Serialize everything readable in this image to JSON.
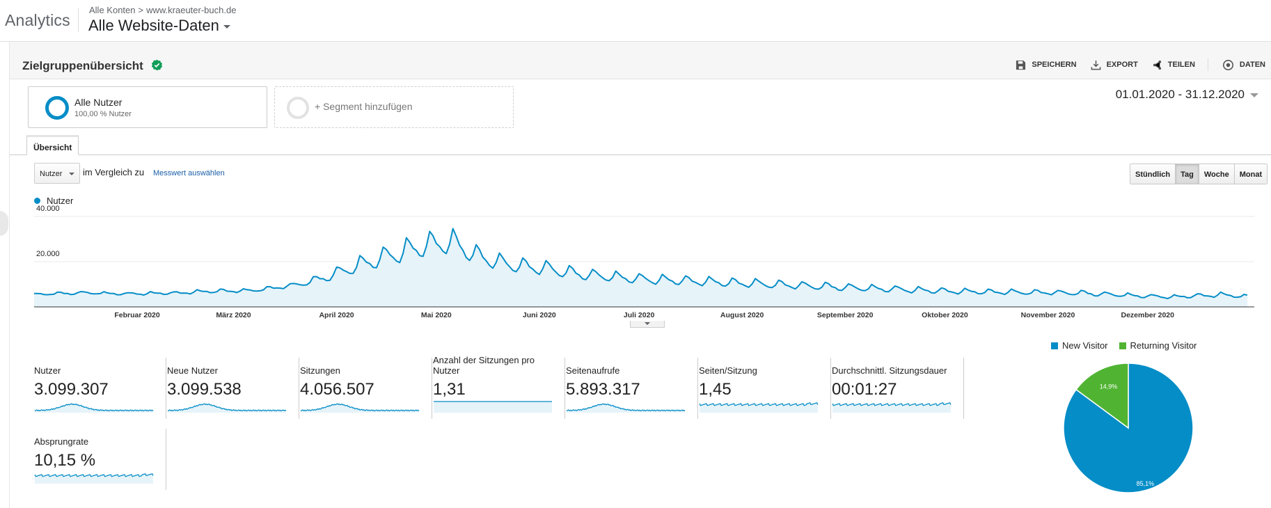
{
  "app": {
    "brand": "Analytics"
  },
  "header": {
    "breadcrumb_account": "Alle Konten",
    "breadcrumb_separator": ">",
    "breadcrumb_property": "www.kraeuter-buch.de",
    "view_name": "Alle Website-Daten"
  },
  "page": {
    "title": "Zielgruppenübersicht",
    "actions": {
      "save": "SPEICHERN",
      "export": "EXPORT",
      "share": "TEILEN",
      "insights": "DATEN"
    }
  },
  "segments": {
    "active_name": "Alle Nutzer",
    "active_sub": "100,00 % Nutzer",
    "add_label": "+ Segment hinzufügen"
  },
  "date_range": "01.01.2020 - 31.12.2020",
  "tabs": {
    "overview": "Übersicht"
  },
  "controls": {
    "metric": "Nutzer",
    "compare_label": "im Vergleich zu",
    "compare_link": "Messwert auswählen",
    "granularity": [
      "Stündlich",
      "Tag",
      "Woche",
      "Monat"
    ],
    "granularity_selected": "Tag"
  },
  "colors": {
    "accent": "#058dc7",
    "area_fill": "#e6f3f9",
    "returning": "#50b432",
    "verified": "#0f9d58"
  },
  "chart_data": [
    {
      "type": "area",
      "legend": [
        "Nutzer"
      ],
      "x_range": [
        "2020-01-01",
        "2020-12-31"
      ],
      "x_tick_labels": [
        "Februar 2020",
        "März 2020",
        "April 2020",
        "Mai 2020",
        "Juni 2020",
        "Juli 2020",
        "August 2020",
        "September 2020",
        "Oktober 2020",
        "November 2020",
        "Dezember 2020"
      ],
      "y_tick_labels": [
        "40.000",
        "20.000"
      ],
      "ylim": [
        0,
        40000
      ],
      "granularity": "day",
      "series": [
        {
          "name": "Nutzer",
          "weekly_x": [
            "2020-01-01",
            "2020-01-08",
            "2020-01-15",
            "2020-01-22",
            "2020-01-29",
            "2020-02-05",
            "2020-02-12",
            "2020-02-19",
            "2020-02-26",
            "2020-03-04",
            "2020-03-11",
            "2020-03-18",
            "2020-03-25",
            "2020-04-01",
            "2020-04-08",
            "2020-04-15",
            "2020-04-22",
            "2020-04-29",
            "2020-05-06",
            "2020-05-13",
            "2020-05-20",
            "2020-05-27",
            "2020-06-03",
            "2020-06-10",
            "2020-06-17",
            "2020-06-24",
            "2020-07-01",
            "2020-07-08",
            "2020-07-15",
            "2020-07-22",
            "2020-07-29",
            "2020-08-05",
            "2020-08-12",
            "2020-08-19",
            "2020-08-26",
            "2020-09-02",
            "2020-09-09",
            "2020-09-16",
            "2020-09-23",
            "2020-09-30",
            "2020-10-07",
            "2020-10-14",
            "2020-10-21",
            "2020-10-28",
            "2020-11-04",
            "2020-11-11",
            "2020-11-18",
            "2020-11-25",
            "2020-12-02",
            "2020-12-09",
            "2020-12-16",
            "2020-12-23",
            "2020-12-31"
          ],
          "weekly_peak": [
            6200,
            6500,
            7000,
            6700,
            6400,
            6700,
            6800,
            7500,
            8000,
            7900,
            9000,
            10500,
            13500,
            18000,
            23000,
            27000,
            31000,
            34000,
            35000,
            28000,
            24000,
            22000,
            21000,
            18500,
            17000,
            16000,
            15000,
            14500,
            14000,
            13500,
            13000,
            12500,
            12000,
            11500,
            11000,
            10500,
            10000,
            9500,
            9000,
            8600,
            8200,
            8000,
            7800,
            7700,
            7600,
            7400,
            6800,
            6200,
            5600,
            5300,
            6000,
            6500,
            5500
          ],
          "weekly_low": [
            5200,
            5400,
            5700,
            5600,
            5300,
            5500,
            5600,
            6000,
            6400,
            6500,
            7200,
            8500,
            10000,
            12500,
            15500,
            18000,
            20500,
            23000,
            24000,
            19000,
            16500,
            15000,
            14200,
            12800,
            11800,
            11200,
            10500,
            10100,
            9800,
            9400,
            9000,
            8700,
            8300,
            7900,
            7600,
            7200,
            6900,
            6600,
            6300,
            6000,
            5800,
            5700,
            5600,
            5500,
            5400,
            5200,
            4800,
            4400,
            4000,
            3800,
            4200,
            4500,
            4000
          ]
        }
      ]
    },
    {
      "type": "pie",
      "legend": [
        "New Visitor",
        "Returning Visitor"
      ],
      "values": [
        85.1,
        14.9
      ],
      "labels": [
        "85,1%",
        "14,9%"
      ]
    }
  ],
  "scorecards": [
    {
      "label": "Nutzer",
      "value": "3.099.307",
      "spark": "traffic"
    },
    {
      "label": "Neue Nutzer",
      "value": "3.099.538",
      "spark": "traffic"
    },
    {
      "label": "Sitzungen",
      "value": "4.056.507",
      "spark": "traffic"
    },
    {
      "label": "Anzahl der Sitzungen pro Nutzer",
      "value": "1,31",
      "spark": "flat"
    },
    {
      "label": "Seitenaufrufe",
      "value": "5.893.317",
      "spark": "traffic"
    },
    {
      "label": "Seiten/Sitzung",
      "value": "1,45",
      "spark": "noisy"
    },
    {
      "label": "Durchschnittl. Sitzungsdauer",
      "value": "00:01:27",
      "spark": "noisy"
    },
    {
      "label": "Absprungrate",
      "value": "10,15 %",
      "spark": "noisy"
    }
  ]
}
